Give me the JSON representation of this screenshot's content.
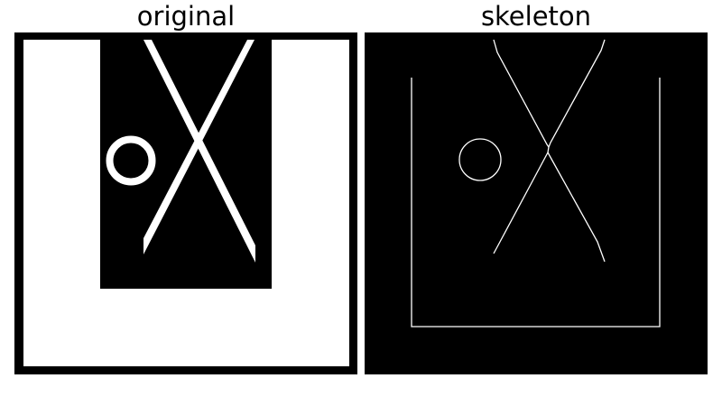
{
  "panels": {
    "original": {
      "title": "original"
    },
    "skeleton": {
      "title": "skeleton"
    }
  },
  "colors": {
    "background": "#ffffff",
    "foreground": "#ffffff",
    "ink": "#000000"
  }
}
